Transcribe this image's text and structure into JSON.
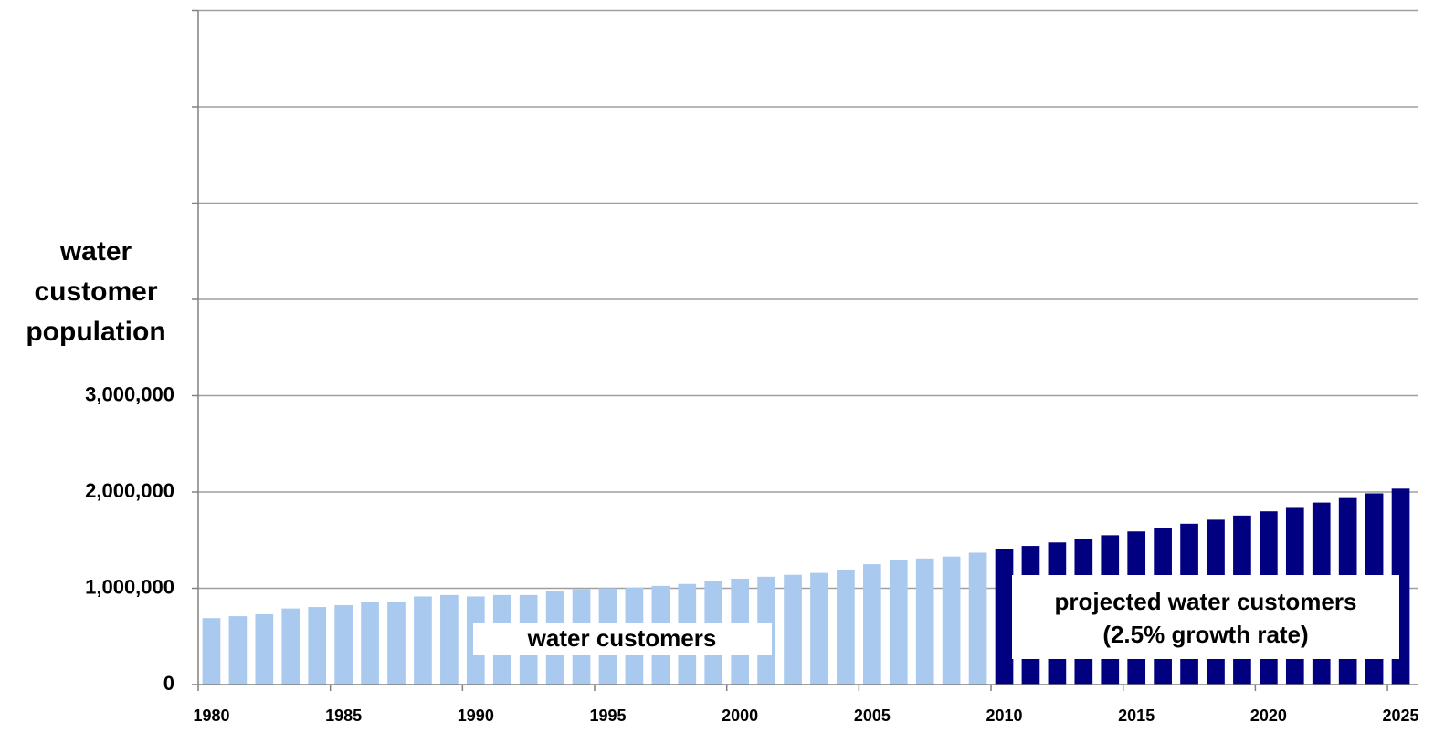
{
  "chart_data": {
    "type": "bar",
    "ylabel": [
      "water",
      "customer",
      "population"
    ],
    "categories": [
      "1980",
      null,
      null,
      null,
      null,
      "1985",
      null,
      null,
      null,
      null,
      "1990",
      null,
      null,
      null,
      null,
      "1995",
      null,
      null,
      null,
      null,
      "2000",
      null,
      null,
      null,
      null,
      "2005",
      null,
      null,
      null,
      null,
      "2010",
      null,
      null,
      null,
      null,
      "2015",
      null,
      null,
      null,
      null,
      "2020",
      null,
      null,
      null,
      null,
      "2025"
    ],
    "series": [
      {
        "name": "water customers",
        "color": "#a9c9ef",
        "values": [
          690000,
          710000,
          730000,
          790000,
          805000,
          825000,
          860000,
          860000,
          915000,
          930000,
          915000,
          930000,
          930000,
          970000,
          990000,
          1000000,
          1005000,
          1025000,
          1045000,
          1080000,
          1100000,
          1120000,
          1140000,
          1160000,
          1195000,
          1250000,
          1290000,
          1310000,
          1330000,
          1370000,
          null,
          null,
          null,
          null,
          null,
          null,
          null,
          null,
          null,
          null,
          null,
          null,
          null,
          null,
          null,
          null
        ]
      },
      {
        "name": "projected water customers",
        "note": "(2.5% growth rate)",
        "color": "#000080",
        "values": [
          null,
          null,
          null,
          null,
          null,
          null,
          null,
          null,
          null,
          null,
          null,
          null,
          null,
          null,
          null,
          null,
          null,
          null,
          null,
          null,
          null,
          null,
          null,
          null,
          null,
          null,
          null,
          null,
          null,
          null,
          1405000,
          1440000,
          1476000,
          1513000,
          1551000,
          1590000,
          1630000,
          1670000,
          1712000,
          1755000,
          1799000,
          1844000,
          1890000,
          1937000,
          1986000,
          2035000
        ]
      }
    ],
    "ylim": [
      0,
      7000000
    ],
    "yticks": [
      0,
      {
        "value": 1000000,
        "label": "1,000,000"
      },
      {
        "value": 2000000,
        "label": "2,000,000"
      },
      {
        "value": 3000000,
        "label": "3,000,000"
      },
      {
        "value": 4000000
      },
      {
        "value": 5000000
      },
      {
        "value": 6000000
      },
      {
        "value": 7000000
      }
    ],
    "grid": true
  }
}
